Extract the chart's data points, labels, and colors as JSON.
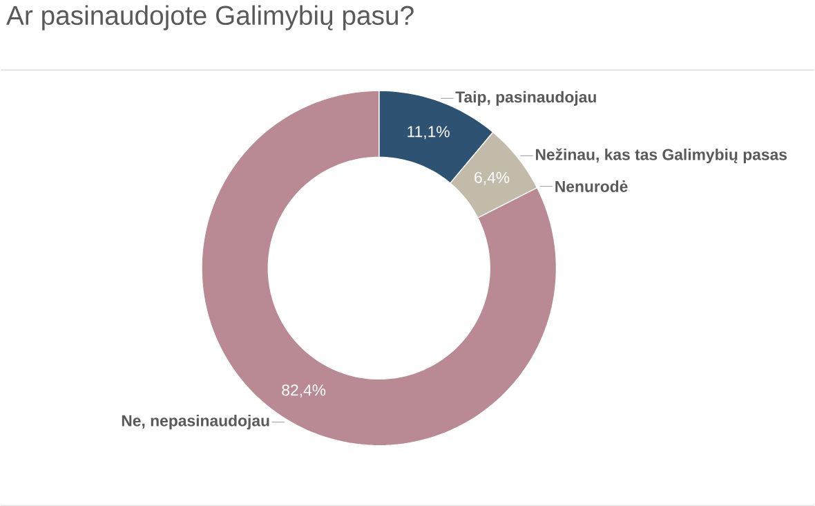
{
  "chart_data": {
    "type": "donut",
    "title": "Ar pasinaudojote Galimybių pasu?",
    "categories": [
      "Taip, pasinaudojau",
      "Nežinau, kas tas Galimybių pasas",
      "Nenurodė",
      "Ne, nepasinaudojau"
    ],
    "values": [
      11.1,
      6.4,
      null,
      82.4
    ],
    "colors": [
      "#2e5272",
      "#c3bba9",
      "#e6e0d6",
      "#b98a93"
    ],
    "value_labels": [
      "11,1%",
      "6,4%",
      null,
      "82,4%"
    ]
  }
}
